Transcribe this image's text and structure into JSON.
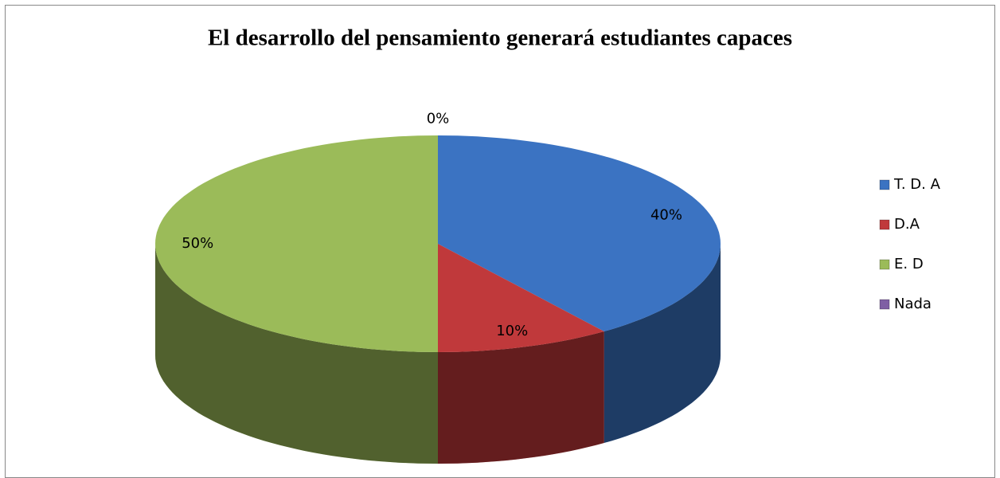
{
  "chart_data": {
    "type": "pie",
    "title": "El desarrollo del pensamiento generará estudiantes capaces",
    "categories": [
      "T. D. A",
      "D.A",
      "E. D",
      "Nada"
    ],
    "values": [
      40,
      10,
      50,
      0
    ],
    "value_labels": [
      "40%",
      "10%",
      "50%",
      "0%"
    ],
    "colors": [
      "#3b73c2",
      "#c0393b",
      "#9bbb59",
      "#7f5fa4"
    ],
    "legend": "right"
  }
}
